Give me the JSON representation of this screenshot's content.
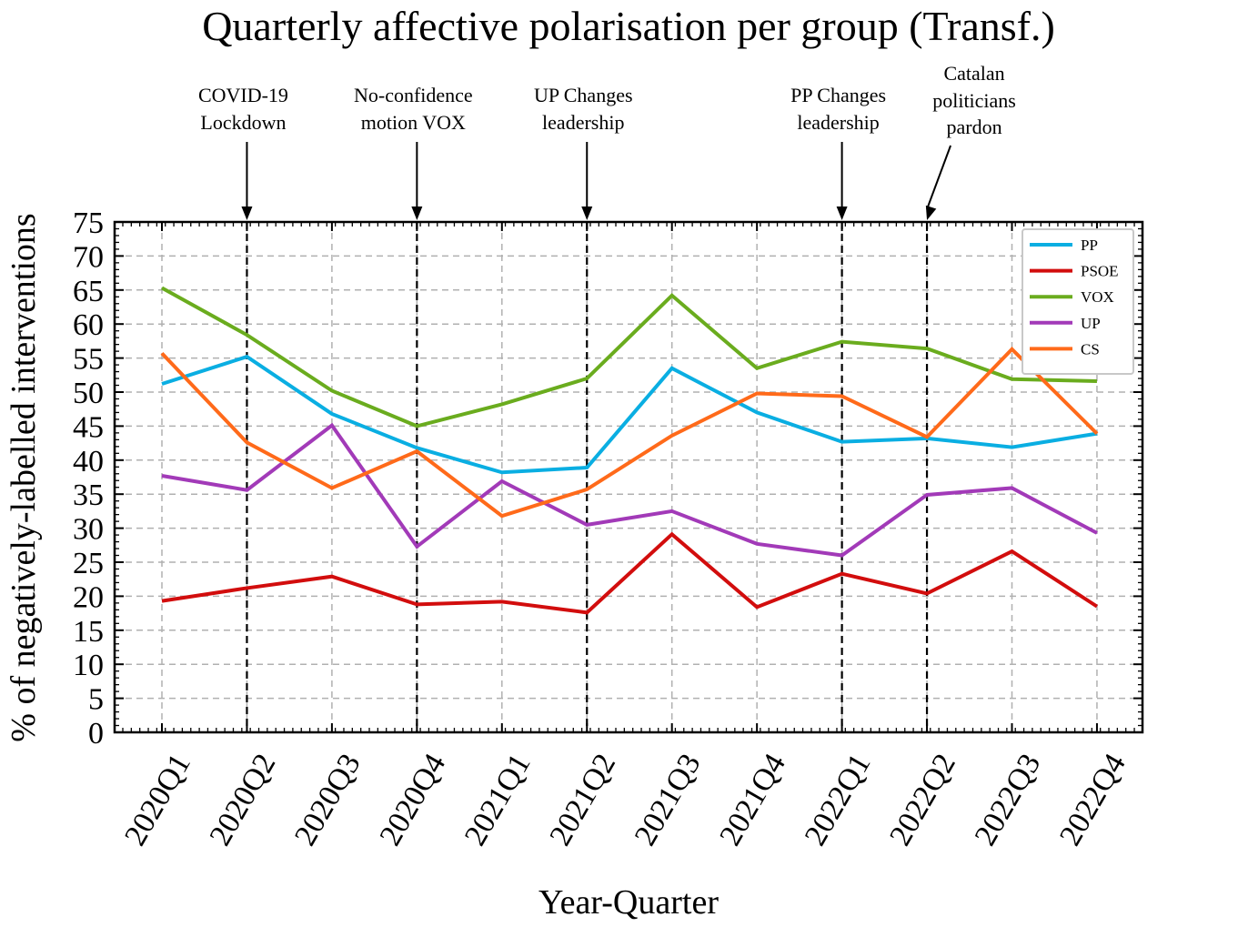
{
  "chart_data": {
    "type": "line",
    "title": "Quarterly affective polarisation per group (Transf.)",
    "xlabel": "Year-Quarter",
    "ylabel": "% of negatively-labelled interventions",
    "categories": [
      "2020Q1",
      "2020Q2",
      "2020Q3",
      "2020Q4",
      "2021Q1",
      "2021Q2",
      "2021Q3",
      "2021Q4",
      "2022Q1",
      "2022Q2",
      "2022Q3",
      "2022Q4"
    ],
    "ylim": [
      0,
      75
    ],
    "yticks": [
      0,
      5,
      10,
      15,
      20,
      25,
      30,
      35,
      40,
      45,
      50,
      55,
      60,
      65,
      70,
      75
    ],
    "grid": true,
    "legend_position": "top-right",
    "series": [
      {
        "name": "PP",
        "color": "#0aaee2",
        "values": [
          51.2,
          55.2,
          46.8,
          41.8,
          38.2,
          38.9,
          53.5,
          47.0,
          42.7,
          43.2,
          41.9,
          43.9
        ]
      },
      {
        "name": "PSOE",
        "color": "#d20d0d",
        "values": [
          19.3,
          21.2,
          22.9,
          18.8,
          19.2,
          17.6,
          29.1,
          18.4,
          23.3,
          20.4,
          26.6,
          18.5
        ]
      },
      {
        "name": "VOX",
        "color": "#6aac1e",
        "values": [
          65.3,
          58.4,
          50.2,
          45.0,
          48.2,
          52.0,
          64.2,
          53.5,
          57.4,
          56.4,
          51.9,
          51.6
        ]
      },
      {
        "name": "UP",
        "color": "#a23ab8",
        "values": [
          37.7,
          35.6,
          45.1,
          27.3,
          36.9,
          30.5,
          32.5,
          27.7,
          26.0,
          34.9,
          35.9,
          29.3
        ]
      },
      {
        "name": "CS",
        "color": "#ff6a1a",
        "values": [
          55.7,
          42.6,
          35.9,
          41.3,
          31.8,
          35.7,
          43.6,
          49.8,
          49.4,
          43.4,
          56.3,
          43.9
        ]
      }
    ],
    "annotations": [
      {
        "label": "COVID-19\nLockdown",
        "x": "2020Q2"
      },
      {
        "label": "No-confidence\nmotion VOX",
        "x": "2020Q4"
      },
      {
        "label": "UP Changes\nleadership",
        "x": "2021Q2"
      },
      {
        "label": "PP Changes\nleadership",
        "x": "2022Q1"
      },
      {
        "label": "Catalan\npoliticians\npardon",
        "x": "2022Q2"
      }
    ]
  }
}
